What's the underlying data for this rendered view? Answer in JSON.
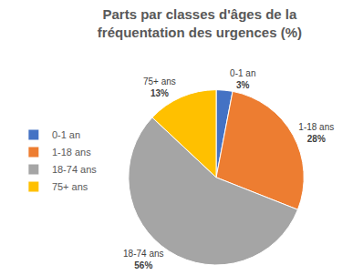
{
  "chart_data": {
    "type": "pie",
    "title": "Parts par classes d'âges de la fréquentation des urgences (%)",
    "categories": [
      "0-1 an",
      "1-18 ans",
      "18-74 ans",
      "75+ ans"
    ],
    "values": [
      3,
      28,
      56,
      13
    ],
    "value_labels": [
      "3%",
      "28%",
      "56%",
      "13%"
    ],
    "colors": [
      "#4472c4",
      "#ed7d31",
      "#a5a5a5",
      "#ffc000"
    ],
    "data_labels": true,
    "legend": "left"
  }
}
